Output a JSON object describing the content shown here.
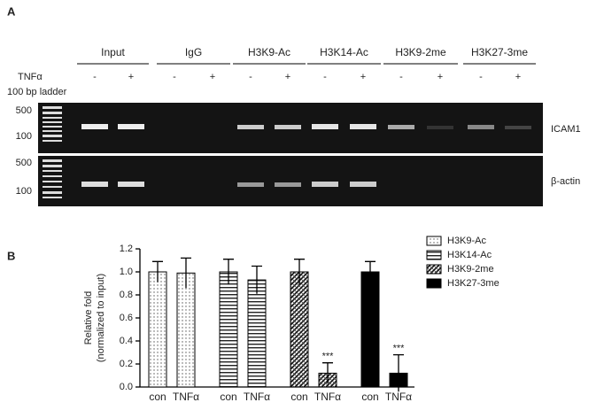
{
  "panel_a": {
    "label": "A",
    "headers": [
      "Input",
      "IgG",
      "H3K9-Ac",
      "H3K14-Ac",
      "H3K9-2me",
      "H3K27-3me"
    ],
    "treatment_label": "TNFα",
    "treatments": [
      "-",
      "+"
    ],
    "ladder_label": "100 bp ladder",
    "marker_labels": [
      "500",
      "100"
    ],
    "gene_labels": [
      "ICAM1",
      "β-actin"
    ]
  },
  "chart_data": {
    "type": "bar",
    "label": "B",
    "ylabel": [
      "Relative fold",
      "(normalized to input)"
    ],
    "categories": [
      "con",
      "TNFα"
    ],
    "ylim": [
      0,
      1.2
    ],
    "yticks": [
      {
        "value": 0,
        "label": "0.0"
      },
      0.2,
      0.4,
      0.6,
      0.8,
      {
        "value": 1,
        "label": "1.0"
      },
      1.2
    ],
    "series": [
      {
        "name": "H3K9-Ac",
        "pattern": "dots",
        "values": [
          1.0,
          0.99
        ],
        "errors": [
          0.09,
          0.13
        ],
        "significance": [
          null,
          null
        ]
      },
      {
        "name": "H3K14-Ac",
        "pattern": "hstripes",
        "values": [
          1.0,
          0.93
        ],
        "errors": [
          0.11,
          0.12
        ],
        "significance": [
          null,
          null
        ]
      },
      {
        "name": "H3K9-2me",
        "pattern": "checks",
        "values": [
          1.0,
          0.12
        ],
        "errors": [
          0.11,
          0.09
        ],
        "significance": [
          null,
          "***"
        ]
      },
      {
        "name": "H3K27-3me",
        "pattern": "solid",
        "values": [
          1.0,
          0.12
        ],
        "errors": [
          0.09,
          0.16
        ],
        "significance": [
          null,
          "***"
        ]
      }
    ]
  }
}
